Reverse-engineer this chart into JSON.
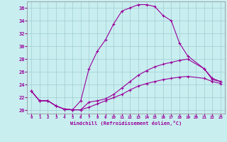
{
  "xlabel": "Windchill (Refroidissement éolien,°C)",
  "xlim": [
    -0.5,
    23.5
  ],
  "ylim": [
    19.5,
    37.0
  ],
  "xticks": [
    0,
    1,
    2,
    3,
    4,
    5,
    6,
    7,
    8,
    9,
    10,
    11,
    12,
    13,
    14,
    15,
    16,
    17,
    18,
    19,
    20,
    21,
    22,
    23
  ],
  "yticks": [
    20,
    22,
    24,
    26,
    28,
    30,
    32,
    34,
    36
  ],
  "background_color": "#c8eef0",
  "grid_color": "#a0ccd0",
  "line_color": "#990099",
  "line1_x": [
    0,
    1,
    2,
    3,
    4,
    5,
    6,
    7,
    8,
    9,
    10,
    11,
    12,
    13,
    14,
    15,
    16,
    17,
    18,
    19,
    21,
    22,
    23
  ],
  "line1_y": [
    23.0,
    21.5,
    21.5,
    20.7,
    20.2,
    20.1,
    21.5,
    26.5,
    29.2,
    31.0,
    33.5,
    35.5,
    36.0,
    36.5,
    36.5,
    36.2,
    34.8,
    34.0,
    30.5,
    28.5,
    26.5,
    24.8,
    24.5
  ],
  "line2_x": [
    0,
    1,
    2,
    3,
    4,
    5,
    6,
    7,
    8,
    9,
    10,
    11,
    12,
    13,
    14,
    15,
    16,
    17,
    18,
    19,
    21,
    22,
    23
  ],
  "line2_y": [
    23.0,
    21.5,
    21.5,
    20.7,
    20.2,
    20.1,
    20.1,
    21.3,
    21.5,
    21.8,
    22.5,
    23.5,
    24.5,
    25.5,
    26.2,
    26.8,
    27.2,
    27.5,
    27.8,
    28.0,
    26.5,
    25.0,
    24.5
  ],
  "line3_x": [
    0,
    1,
    2,
    3,
    4,
    5,
    6,
    7,
    8,
    9,
    10,
    11,
    12,
    13,
    14,
    15,
    16,
    17,
    18,
    19,
    21,
    22,
    23
  ],
  "line3_y": [
    23.0,
    21.5,
    21.5,
    20.7,
    20.2,
    20.1,
    20.1,
    20.5,
    21.0,
    21.5,
    22.0,
    22.5,
    23.2,
    23.8,
    24.2,
    24.5,
    24.8,
    25.0,
    25.2,
    25.3,
    25.0,
    24.5,
    24.2
  ]
}
